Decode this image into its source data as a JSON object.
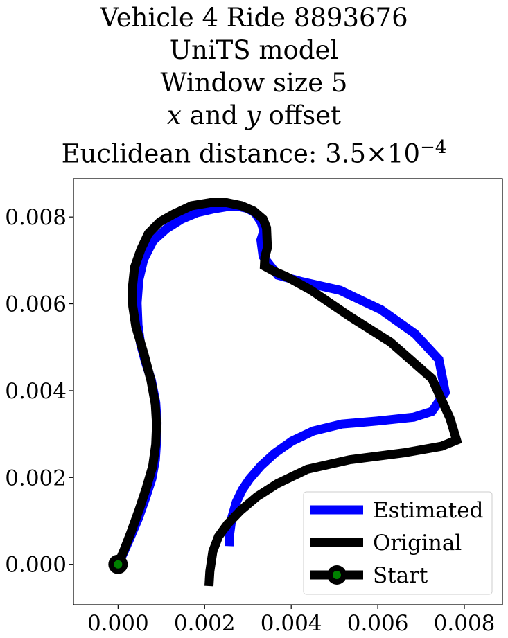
{
  "chart_data": {
    "type": "line",
    "title_lines": [
      "Vehicle 4 Ride 8893676",
      "UniTS model",
      "Window size 5"
    ],
    "title_offset": {
      "x": "x",
      "and": " and ",
      "y": "y",
      "rest": " offset"
    },
    "title_distance": {
      "prefix": "Euclidean distance: ",
      "mantissa": "3.5",
      "times": "×",
      "base": "10",
      "exponent": "−4"
    },
    "xlim": [
      -0.00103,
      0.00888
    ],
    "ylim": [
      -0.00093,
      0.00888
    ],
    "xticks": [
      0.0,
      0.002,
      0.004,
      0.006,
      0.008
    ],
    "xtick_labels": [
      "0.000",
      "0.002",
      "0.004",
      "0.006",
      "0.008"
    ],
    "yticks": [
      0.0,
      0.002,
      0.004,
      0.006,
      0.008
    ],
    "ytick_labels": [
      "0.000",
      "0.002",
      "0.004",
      "0.006",
      "0.008"
    ],
    "grid": false,
    "legend_position": "lower-right",
    "series": [
      {
        "name": "Estimated",
        "color": "#0000ff",
        "x": [
          0.00257,
          0.00258,
          0.00263,
          0.00273,
          0.00287,
          0.00304,
          0.0033,
          0.00362,
          0.00402,
          0.00451,
          0.00517,
          0.00598,
          0.00683,
          0.00725,
          0.00756,
          0.00741,
          0.00686,
          0.00608,
          0.00513,
          0.00424,
          0.00369,
          0.00335,
          0.0033,
          0.00337,
          0.0033,
          0.00316,
          0.00298,
          0.00275,
          0.00248,
          0.00218,
          0.00183,
          0.00147,
          0.00112,
          0.00081,
          0.00059,
          0.00048,
          0.00044,
          0.00046,
          0.00052,
          0.00063,
          0.00077,
          0.00087,
          0.0009,
          0.00089,
          0.00086,
          0.00078,
          0.00064,
          0.00047,
          0.00027,
          0.00012,
          0.0
        ],
        "y": [
          0.00042,
          0.00071,
          0.00108,
          0.00143,
          0.00172,
          0.00197,
          0.00227,
          0.00256,
          0.00284,
          0.00307,
          0.00323,
          0.0033,
          0.00339,
          0.00352,
          0.00396,
          0.00472,
          0.00531,
          0.00586,
          0.00631,
          0.00651,
          0.00666,
          0.00709,
          0.00747,
          0.00768,
          0.00789,
          0.0081,
          0.0082,
          0.00825,
          0.00823,
          0.00818,
          0.0081,
          0.00795,
          0.00773,
          0.00745,
          0.00702,
          0.00655,
          0.00602,
          0.00551,
          0.00508,
          0.00467,
          0.00424,
          0.00373,
          0.00326,
          0.00283,
          0.0024,
          0.00197,
          0.00154,
          0.00106,
          0.00059,
          0.00025,
          0.0
        ]
      },
      {
        "name": "Original",
        "color": "#000000",
        "x": [
          0.0021,
          0.00212,
          0.00219,
          0.00232,
          0.00253,
          0.00283,
          0.00321,
          0.00368,
          0.00437,
          0.00535,
          0.00661,
          0.00747,
          0.00782,
          0.00767,
          0.00725,
          0.00629,
          0.00535,
          0.00445,
          0.00388,
          0.00358,
          0.00338,
          0.00339,
          0.00345,
          0.00343,
          0.00335,
          0.00313,
          0.00285,
          0.00251,
          0.00213,
          0.0017,
          0.00129,
          0.00097,
          0.0007,
          0.00053,
          0.00038,
          0.00033,
          0.00034,
          0.00041,
          0.0006,
          0.00076,
          0.00086,
          0.00089,
          0.00087,
          0.0008,
          0.00065,
          0.00048,
          0.00029,
          0.00013,
          0.0
        ],
        "y": [
          -0.0005,
          -0.00016,
          0.0003,
          0.00064,
          0.00093,
          0.00124,
          0.00156,
          0.00186,
          0.00219,
          0.00241,
          0.00257,
          0.00272,
          0.00286,
          0.00336,
          0.00428,
          0.00512,
          0.00571,
          0.00632,
          0.00663,
          0.00676,
          0.00687,
          0.00707,
          0.00729,
          0.00775,
          0.00795,
          0.00814,
          0.00826,
          0.00833,
          0.00833,
          0.00826,
          0.00807,
          0.00789,
          0.00762,
          0.00726,
          0.00684,
          0.00635,
          0.00594,
          0.00548,
          0.00484,
          0.00424,
          0.00369,
          0.00322,
          0.00276,
          0.00226,
          0.00175,
          0.00124,
          0.00072,
          0.00031,
          0.0
        ]
      },
      {
        "name": "Start",
        "color": "#000000",
        "marker_face": "#008000",
        "x": [
          0.0
        ],
        "y": [
          0.0
        ]
      }
    ]
  }
}
